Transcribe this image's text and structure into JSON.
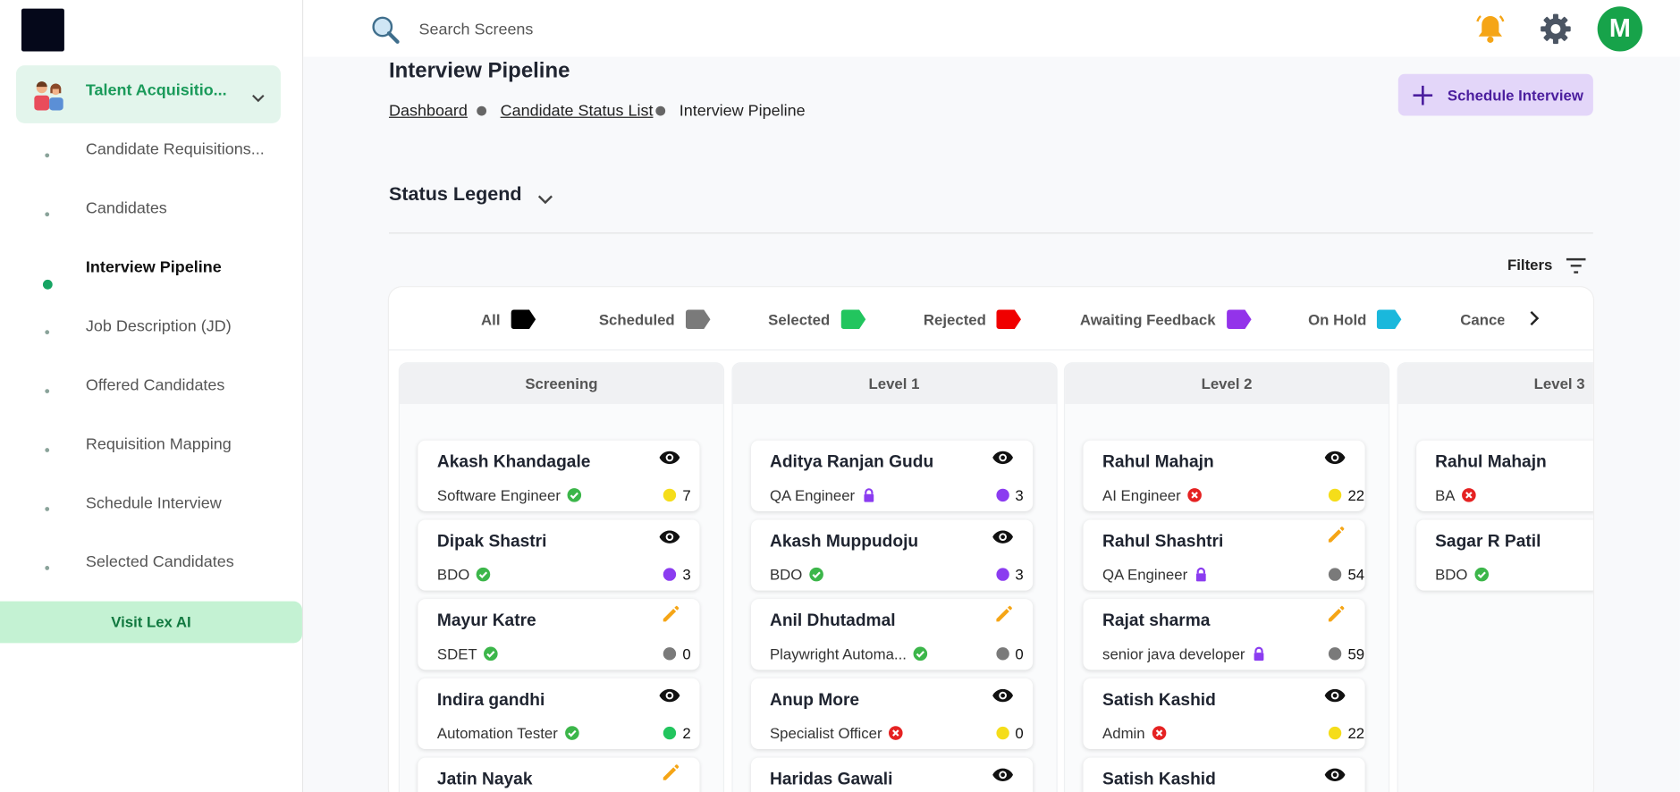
{
  "header": {
    "search_placeholder": "Search Screens",
    "avatar": "M"
  },
  "sidebar": {
    "module": "Talent Acquisitio...",
    "items": [
      "Candidate Requisitions...",
      "Candidates",
      "Interview Pipeline",
      "Job Description (JD)",
      "Offered Candidates",
      "Requisition Mapping",
      "Schedule Interview",
      "Selected Candidates"
    ],
    "active": 2,
    "visit_button": "Visit Lex AI"
  },
  "page": {
    "title": "Interview Pipeline",
    "breadcrumbs": [
      "Dashboard",
      "Candidate Status List",
      "Interview Pipeline"
    ],
    "action_button": "Schedule Interview",
    "status_legend": "Status Legend",
    "filters": "Filters"
  },
  "tabs": [
    {
      "label": "All",
      "color": "#000000"
    },
    {
      "label": "Scheduled",
      "color": "#7a7a7a"
    },
    {
      "label": "Selected",
      "color": "#22c55e"
    },
    {
      "label": "Rejected",
      "color": "#f00000"
    },
    {
      "label": "Awaiting Feedback",
      "color": "#9333ea"
    },
    {
      "label": "On Hold",
      "color": "#1ab8dc"
    },
    {
      "label": "Cance",
      "color": "#ffffff"
    }
  ],
  "columns": [
    {
      "title": "Screening",
      "cards": [
        {
          "name": "Akash Khandagale",
          "role": "Software Engineer",
          "status_icon": "check",
          "action": "view",
          "count": 7,
          "count_color": "#f5dd1a"
        },
        {
          "name": "Dipak Shastri",
          "role": "BDO",
          "status_icon": "check",
          "action": "view",
          "count": 3,
          "count_color": "#8b3cf0"
        },
        {
          "name": "Mayur Katre",
          "role": "SDET",
          "status_icon": "check",
          "action": "edit",
          "count": 0,
          "count_color": "#7a7a7a"
        },
        {
          "name": "Indira gandhi",
          "role": "Automation Tester",
          "status_icon": "check",
          "action": "view",
          "count": 2,
          "count_color": "#22c55e"
        },
        {
          "name": "Jatin Nayak",
          "action": "edit"
        }
      ]
    },
    {
      "title": "Level 1",
      "cards": [
        {
          "name": "Aditya Ranjan Gudu",
          "role": "QA Engineer",
          "status_icon": "lock",
          "action": "view",
          "count": 3,
          "count_color": "#8b3cf0"
        },
        {
          "name": "Akash Muppudoju",
          "role": "BDO",
          "status_icon": "check",
          "action": "view",
          "count": 3,
          "count_color": "#8b3cf0"
        },
        {
          "name": "Anil Dhutadmal",
          "role": "Playwright Automa...",
          "status_icon": "check",
          "action": "edit",
          "count": 0,
          "count_color": "#7a7a7a"
        },
        {
          "name": "Anup More",
          "role": "Specialist Officer",
          "status_icon": "cross",
          "action": "view",
          "count": 0,
          "count_color": "#f5dd1a"
        },
        {
          "name": "Haridas Gawali",
          "action": "view"
        }
      ]
    },
    {
      "title": "Level 2",
      "cards": [
        {
          "name": "Rahul Mahajn",
          "role": "AI Engineer",
          "status_icon": "cross",
          "action": "view",
          "count": 22,
          "count_color": "#f5dd1a"
        },
        {
          "name": "Rahul Shashtri",
          "role": "QA Engineer",
          "status_icon": "lock",
          "action": "edit",
          "count": 54,
          "count_color": "#7a7a7a"
        },
        {
          "name": "Rajat sharma",
          "role": "senior java developer",
          "status_icon": "lock",
          "action": "edit",
          "count": 59,
          "count_color": "#7a7a7a"
        },
        {
          "name": "Satish Kashid",
          "role": "Admin",
          "status_icon": "cross",
          "action": "view",
          "count": 22,
          "count_color": "#f5dd1a"
        },
        {
          "name": "Satish Kashid",
          "action": "view"
        }
      ]
    },
    {
      "title": "Level 3",
      "cards": [
        {
          "name": "Rahul Mahajn",
          "role": "BA",
          "status_icon": "cross"
        },
        {
          "name": "Sagar R Patil",
          "role": "BDO",
          "status_icon": "check"
        }
      ]
    }
  ]
}
